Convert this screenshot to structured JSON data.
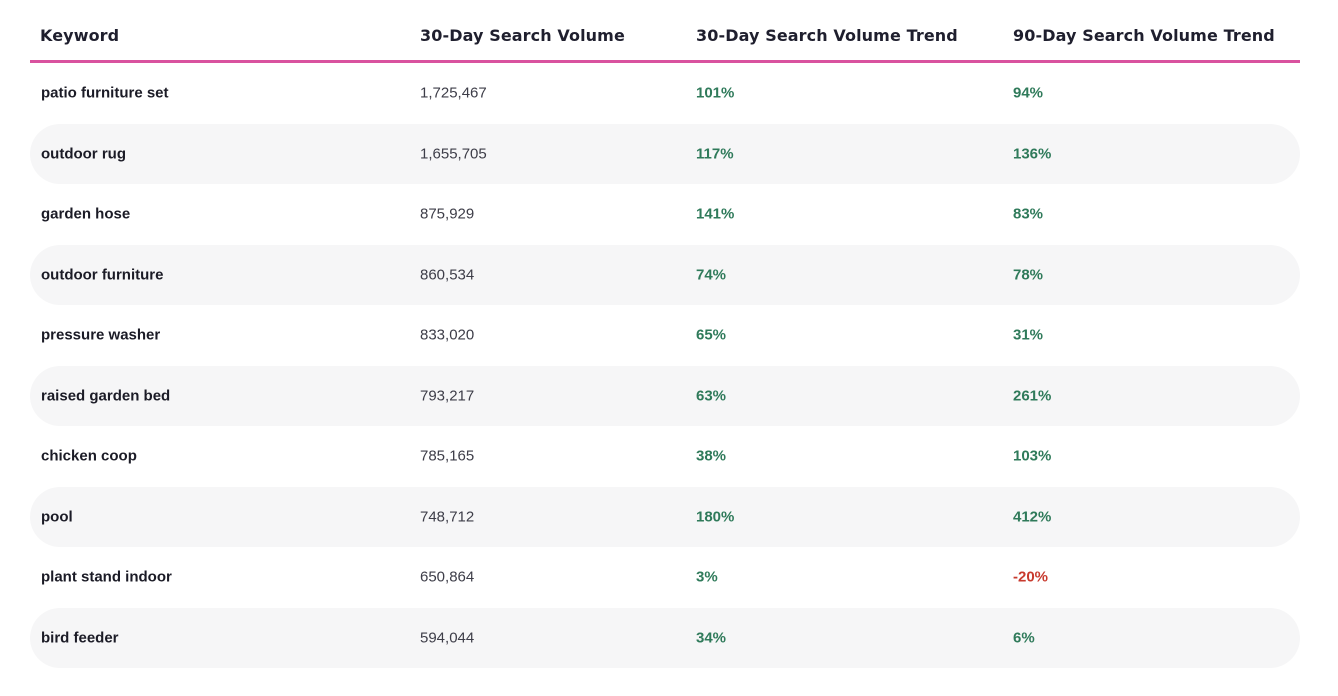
{
  "table": {
    "headers": {
      "keyword": "Keyword",
      "volume": "30-Day Search Volume",
      "trend30": "30-Day Search Volume Trend",
      "trend90": "90-Day Search Volume Trend"
    },
    "rows": [
      {
        "keyword": "patio furniture set",
        "volume": "1,725,467",
        "trend30": "101%",
        "trend90": "94%"
      },
      {
        "keyword": "outdoor rug",
        "volume": "1,655,705",
        "trend30": "117%",
        "trend90": "136%"
      },
      {
        "keyword": "garden hose",
        "volume": "875,929",
        "trend30": "141%",
        "trend90": "83%"
      },
      {
        "keyword": "outdoor furniture",
        "volume": "860,534",
        "trend30": "74%",
        "trend90": "78%"
      },
      {
        "keyword": "pressure washer",
        "volume": "833,020",
        "trend30": "65%",
        "trend90": "31%"
      },
      {
        "keyword": "raised garden bed",
        "volume": "793,217",
        "trend30": "63%",
        "trend90": "261%"
      },
      {
        "keyword": "chicken coop",
        "volume": "785,165",
        "trend30": "38%",
        "trend90": "103%"
      },
      {
        "keyword": "pool",
        "volume": "748,712",
        "trend30": "180%",
        "trend90": "412%"
      },
      {
        "keyword": "plant stand indoor",
        "volume": "650,864",
        "trend30": "3%",
        "trend90": "-20%"
      },
      {
        "keyword": "bird feeder",
        "volume": "594,044",
        "trend30": "34%",
        "trend90": "6%"
      }
    ]
  },
  "colors": {
    "header_rule": "#d9529f",
    "positive": "#2f7a5a",
    "negative": "#c83a2e",
    "alt_row": "#f6f6f7"
  }
}
